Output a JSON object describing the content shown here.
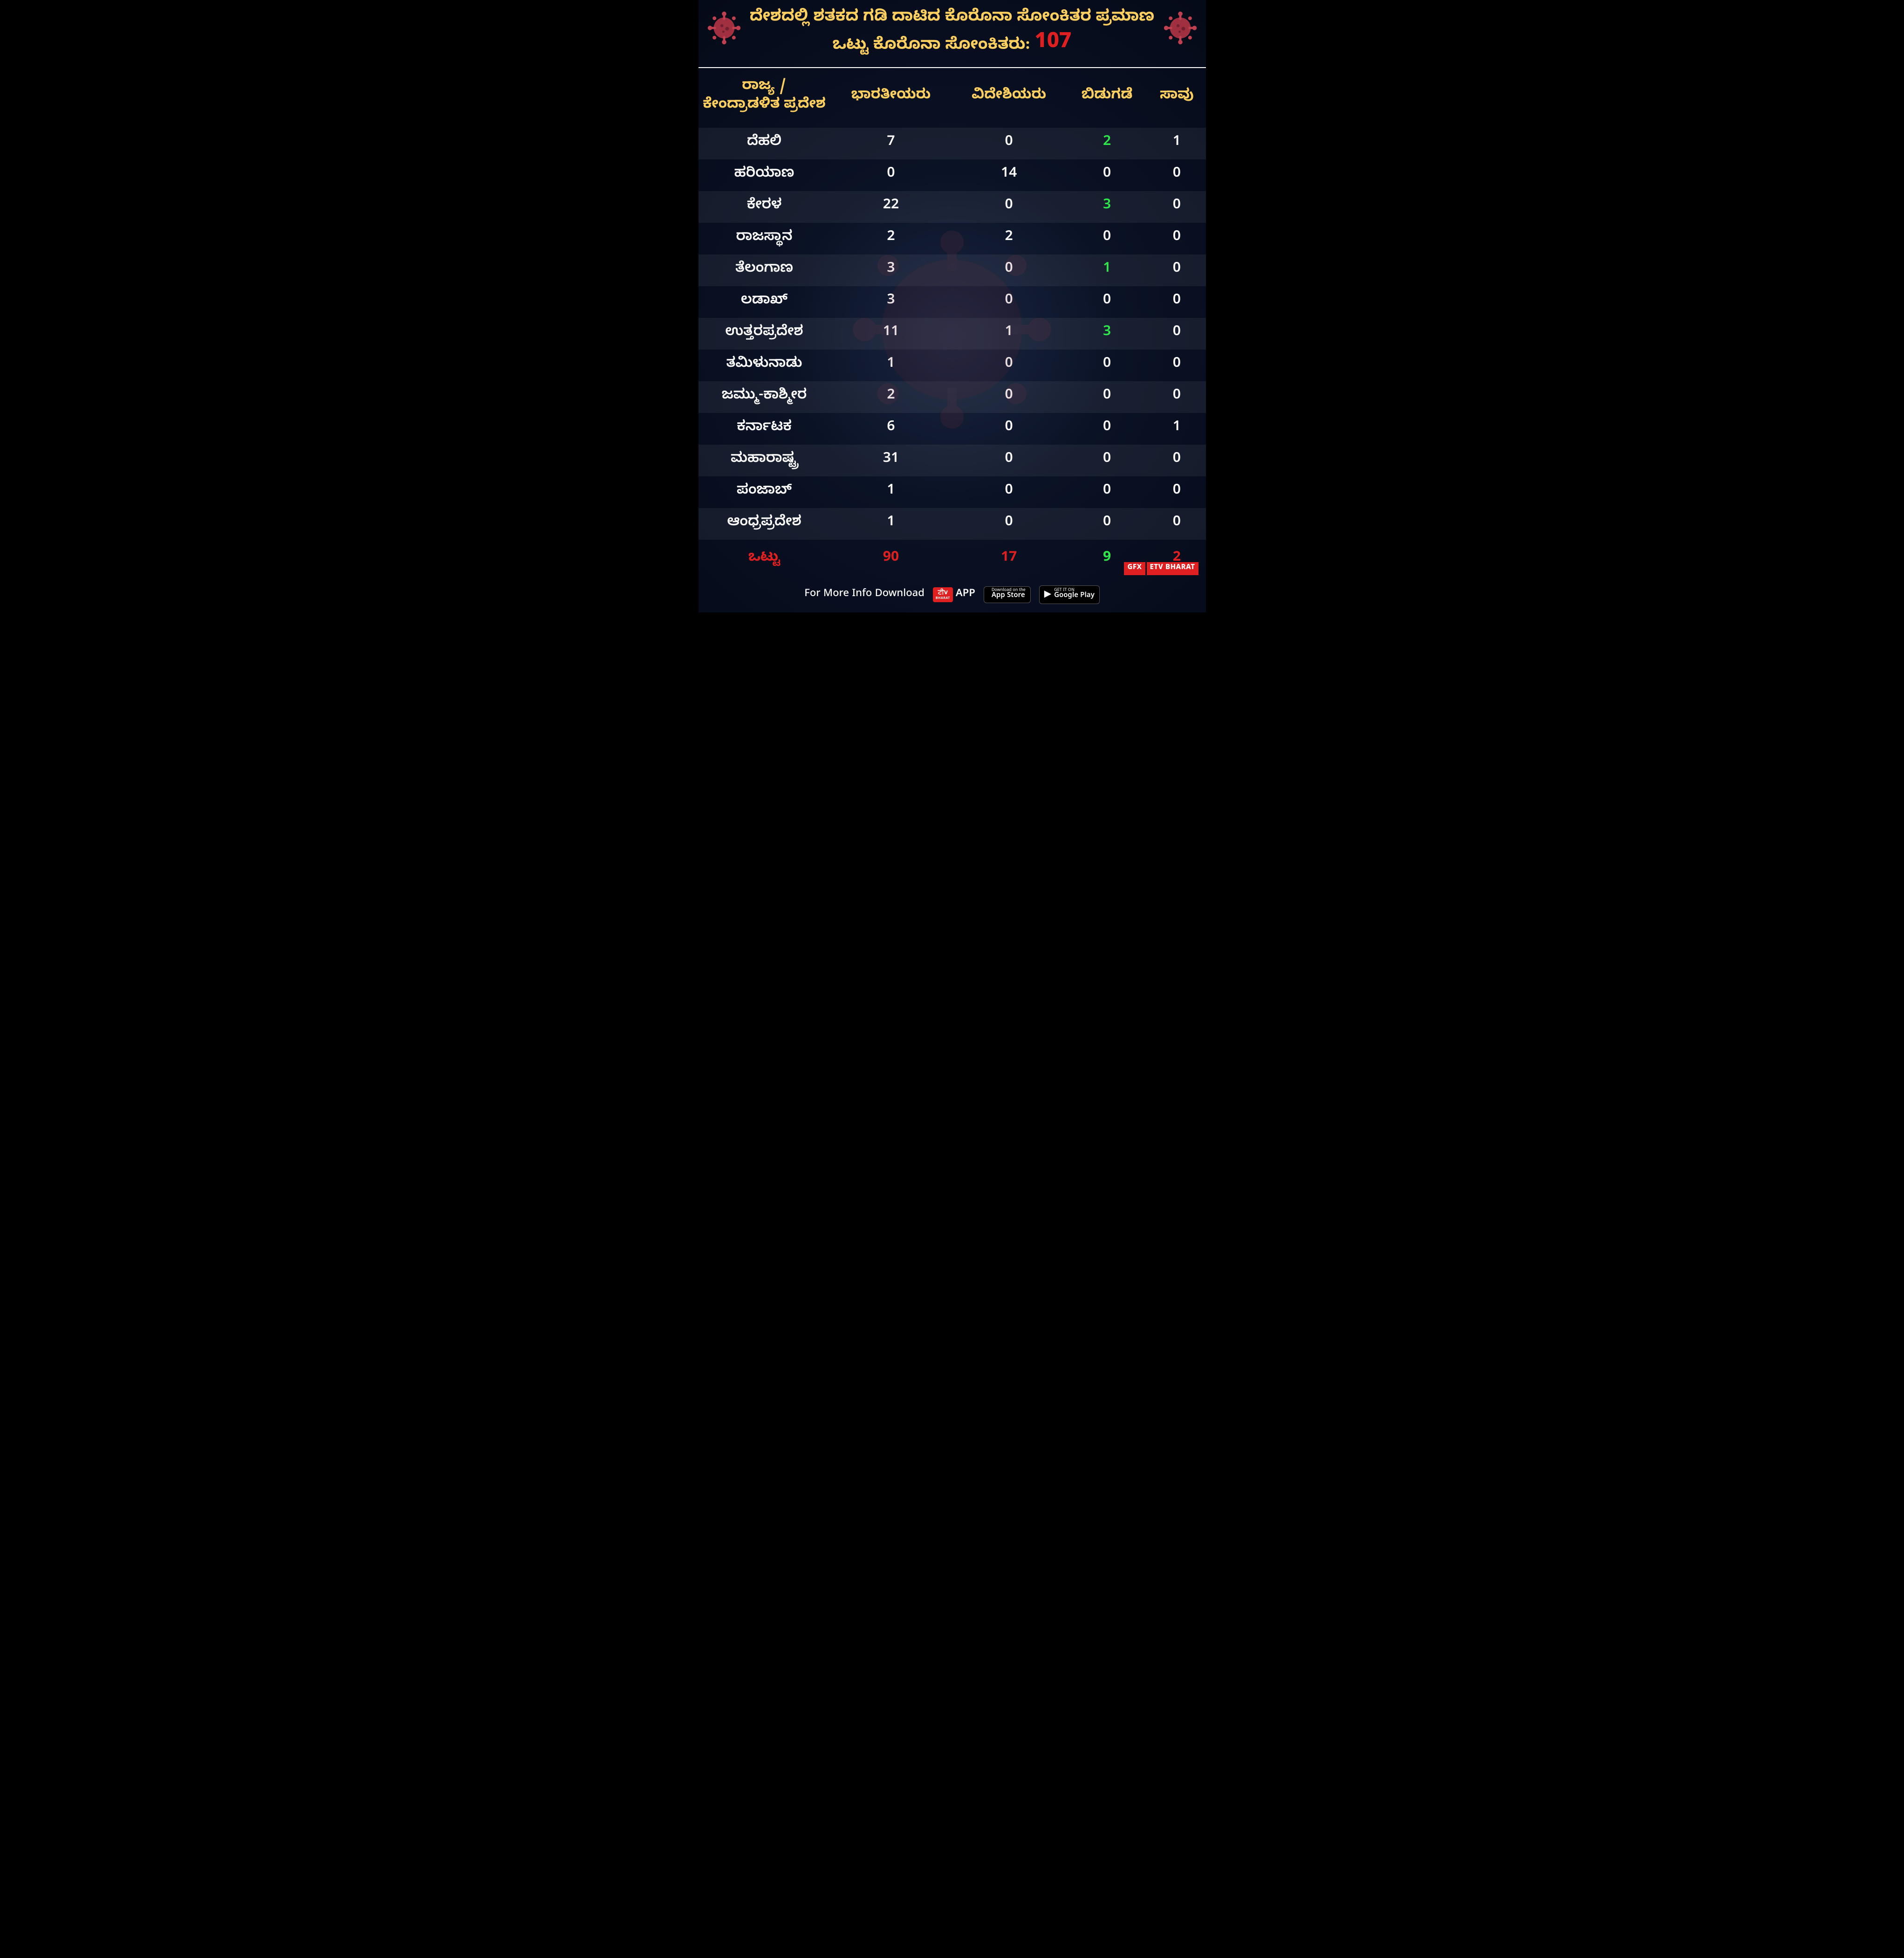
{
  "header": {
    "line1": "ದೇಶದಲ್ಲಿ ಶತಕದ ಗಡಿ ದಾಟಿದ ಕೊರೊನಾ ಸೋಂಕಿತರ ಪ್ರಮಾಣ",
    "line2_prefix": "ಒಟ್ಟು ಕೊರೊನಾ ಸೋಂಕಿತರು: ",
    "total_number": "107"
  },
  "colors": {
    "heading": "#ffd060",
    "total_red": "#e02020",
    "released_green": "#2ee84a",
    "text_white": "#ffffff",
    "bg_dark": "#0a1225"
  },
  "columns": [
    "ರಾಜ್ಯ / ಕೇಂದ್ರಾಡಳಿತ ಪ್ರದೇಶ",
    "ಭಾರತೀಯರು",
    "ವಿದೇಶಿಯರು",
    "ಬಿಡುಗಡೆ",
    "ಸಾವು"
  ],
  "rows": [
    {
      "state": "ದೆಹಲಿ",
      "indian": "7",
      "foreign": "0",
      "released": "2",
      "released_nonzero": true,
      "death": "1"
    },
    {
      "state": "ಹರಿಯಾಣ",
      "indian": "0",
      "foreign": "14",
      "released": "0",
      "released_nonzero": false,
      "death": "0"
    },
    {
      "state": "ಕೇರಳ",
      "indian": "22",
      "foreign": "0",
      "released": "3",
      "released_nonzero": true,
      "death": "0"
    },
    {
      "state": "ರಾಜಸ್ಥಾನ",
      "indian": "2",
      "foreign": "2",
      "released": "0",
      "released_nonzero": false,
      "death": "0"
    },
    {
      "state": "ತೆಲಂಗಾಣ",
      "indian": "3",
      "foreign": "0",
      "released": "1",
      "released_nonzero": true,
      "death": "0"
    },
    {
      "state": "ಲಡಾಖ್",
      "indian": "3",
      "foreign": "0",
      "released": "0",
      "released_nonzero": false,
      "death": "0"
    },
    {
      "state": "ಉತ್ತರಪ್ರದೇಶ",
      "indian": "11",
      "foreign": "1",
      "released": "3",
      "released_nonzero": true,
      "death": "0"
    },
    {
      "state": "ತಮಿಳುನಾಡು",
      "indian": "1",
      "foreign": "0",
      "released": "0",
      "released_nonzero": false,
      "death": "0"
    },
    {
      "state": "ಜಮ್ಮು-ಕಾಶ್ಮೀರ",
      "indian": "2",
      "foreign": "0",
      "released": "0",
      "released_nonzero": false,
      "death": "0"
    },
    {
      "state": "ಕರ್ನಾಟಕ",
      "indian": "6",
      "foreign": "0",
      "released": "0",
      "released_nonzero": false,
      "death": "1"
    },
    {
      "state": "ಮಹಾರಾಷ್ಟ್ರ",
      "indian": "31",
      "foreign": "0",
      "released": "0",
      "released_nonzero": false,
      "death": "0"
    },
    {
      "state": "ಪಂಜಾಬ್",
      "indian": "1",
      "foreign": "0",
      "released": "0",
      "released_nonzero": false,
      "death": "0"
    },
    {
      "state": "ಆಂಧ್ರಪ್ರದೇಶ",
      "indian": "1",
      "foreign": "0",
      "released": "0",
      "released_nonzero": false,
      "death": "0"
    }
  ],
  "totals": {
    "label": "ಒಟ್ಟು",
    "indian": "90",
    "foreign": "17",
    "released": "9",
    "death": "2"
  },
  "footer": {
    "more_info": "For More Info Download",
    "etv_top": "ਟੀv",
    "etv_bottom": "BHARAT",
    "app_label": "APP",
    "appstore_tiny": "Download on the",
    "appstore_big": "App Store",
    "play_tiny": "GET IT ON",
    "play_big": "Google Play",
    "gfx": "GFX",
    "etv_bharat": "ETV BHARAT"
  }
}
